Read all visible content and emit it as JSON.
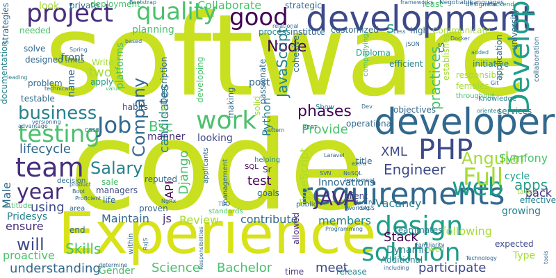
{
  "palette": {
    "yellow_green": "#c8e020",
    "lime": "#a5db36",
    "green": "#4ac16d",
    "teal": "#1f9e89",
    "teal_blue": "#26828e",
    "blue": "#31688e",
    "indigo": "#3e4989",
    "purple": "#472d7b",
    "dark_purple": "#440154"
  },
  "words": [
    {
      "text": "software",
      "color": "#c8e020"
    },
    {
      "text": "code",
      "color": "#c8e020"
    },
    {
      "text": "Experience",
      "color": "#d8e219"
    },
    {
      "text": "developer",
      "color": "#31688e"
    },
    {
      "text": "development",
      "color": "#3e4989"
    },
    {
      "text": "requirements",
      "color": "#31688e"
    },
    {
      "text": "project",
      "color": "#472d7b"
    },
    {
      "text": "quality",
      "color": "#4ac16d"
    },
    {
      "text": "good",
      "color": "#440154"
    },
    {
      "text": "design",
      "color": "#1f9e89"
    },
    {
      "text": "Develop",
      "color": "#1f9e89"
    },
    {
      "text": "PHP",
      "color": "#3e4989"
    },
    {
      "text": "web",
      "color": "#1f9e89"
    },
    {
      "text": "testing",
      "color": "#4ac16d"
    },
    {
      "text": "team",
      "color": "#472d7b"
    },
    {
      "text": "business",
      "color": "#26828e"
    },
    {
      "text": "Job",
      "color": "#31688e"
    },
    {
      "text": "work",
      "color": "#4ac16d"
    },
    {
      "text": "year",
      "color": "#472d7b"
    },
    {
      "text": "solution",
      "color": "#1f9e89"
    },
    {
      "text": "Full",
      "color": "#a5db36"
    },
    {
      "text": "JAVA",
      "color": "#472d7b"
    },
    {
      "text": "will",
      "color": "#3e4989"
    },
    {
      "text": "Salary",
      "color": "#26828e"
    },
    {
      "text": "Angular",
      "color": "#a5db36"
    },
    {
      "text": "phases",
      "color": "#440154"
    },
    {
      "text": "Engineer",
      "color": "#3e4989"
    },
    {
      "text": "Stack",
      "color": "#440154"
    },
    {
      "text": "apps",
      "color": "#1f9e89"
    },
    {
      "text": "Node",
      "color": "#440154"
    },
    {
      "text": "Collaborate",
      "color": "#4ac16d"
    },
    {
      "text": "Company",
      "color": "#31688e"
    },
    {
      "text": "candidates",
      "color": "#26828e"
    },
    {
      "text": "Bsc",
      "color": "#4ac16d"
    },
    {
      "text": "lifecycle",
      "color": "#31688e"
    },
    {
      "text": "Skills",
      "color": "#4ac16d"
    },
    {
      "text": "Bachelor",
      "color": "#4ac16d"
    },
    {
      "text": "Science",
      "color": "#4ac16d"
    },
    {
      "text": "understanding",
      "color": "#31688e"
    },
    {
      "text": "participate",
      "color": "#3e4989"
    },
    {
      "text": "meet",
      "color": "#3e4989"
    },
    {
      "text": "release",
      "color": "#26828e"
    },
    {
      "text": "Maintain",
      "color": "#31688e"
    },
    {
      "text": "js",
      "color": "#472d7b"
    },
    {
      "text": "Review",
      "color": "#a5db36"
    },
    {
      "text": "contribute",
      "color": "#31688e"
    },
    {
      "text": "members",
      "color": "#26828e"
    },
    {
      "text": "following",
      "color": "#a5db36"
    },
    {
      "text": "Python",
      "color": "#26828e"
    },
    {
      "text": "Provide",
      "color": "#4ac16d"
    },
    {
      "text": "JavaScript",
      "color": "#26828e"
    },
    {
      "text": "TypeScript",
      "color": "#a5db36"
    },
    {
      "text": "XML",
      "color": "#3e4989"
    },
    {
      "text": "Django",
      "color": "#4ac16d"
    },
    {
      "text": "API",
      "color": "#440154"
    },
    {
      "text": "test",
      "color": "#440154"
    },
    {
      "text": "Innovations",
      "color": "#31688e"
    },
    {
      "text": "Vacancy",
      "color": "#26828e"
    },
    {
      "text": "Symfony",
      "color": "#4ac16d"
    },
    {
      "text": "back",
      "color": "#472d7b"
    },
    {
      "text": "cycle",
      "color": "#1f9e89"
    },
    {
      "text": "ensure",
      "color": "#472d7b"
    },
    {
      "text": "using",
      "color": "#3e4989"
    },
    {
      "text": "Male",
      "color": "#31688e"
    },
    {
      "text": "Pridesys",
      "color": "#26828e"
    },
    {
      "text": "proactive",
      "color": "#4ac16d"
    },
    {
      "text": "Gender",
      "color": "#4ac16d"
    },
    {
      "text": "two",
      "color": "#a5db36"
    },
    {
      "text": "front",
      "color": "#31688e"
    },
    {
      "text": "planning",
      "color": "#4ac16d"
    },
    {
      "text": "Description",
      "color": "#31688e"
    },
    {
      "text": "developing",
      "color": "#4ac16d"
    },
    {
      "text": "post",
      "color": "#31688e"
    },
    {
      "text": "passionate",
      "color": "#31688e"
    },
    {
      "text": "practices",
      "color": "#4ac16d"
    },
    {
      "text": "objectives",
      "color": "#31688e"
    },
    {
      "text": "services",
      "color": "#26828e"
    },
    {
      "text": "responsible",
      "color": "#a5db36"
    },
    {
      "text": "application",
      "color": "#31688e"
    },
    {
      "text": "initiative",
      "color": "#26828e"
    },
    {
      "text": "cs",
      "color": "#31688e"
    },
    {
      "text": "process",
      "color": "#26828e"
    },
    {
      "text": "institute",
      "color": "#31688e"
    },
    {
      "text": "customized",
      "color": "#31688e"
    },
    {
      "text": "Communicate",
      "color": "#a5db36"
    },
    {
      "text": "efficient",
      "color": "#26828e"
    },
    {
      "text": "Diploma",
      "color": "#1f9e89"
    },
    {
      "text": "strategic",
      "color": "#31688e"
    },
    {
      "text": "deployment",
      "color": "#4ac16d"
    },
    {
      "text": "private",
      "color": "#31688e"
    },
    {
      "text": "look",
      "color": "#a5db36"
    },
    {
      "text": "strategies",
      "color": "#31688e"
    },
    {
      "text": "needed",
      "color": "#4ac16d"
    },
    {
      "text": "solve",
      "color": "#31688e"
    },
    {
      "text": "designed",
      "color": "#31688e"
    },
    {
      "text": "problem",
      "color": "#31688e"
    },
    {
      "text": "documentation",
      "color": "#26828e"
    },
    {
      "text": "testable",
      "color": "#31688e"
    },
    {
      "text": "habits",
      "color": "#3e4989"
    },
    {
      "text": "name",
      "color": "#31688e"
    },
    {
      "text": "apply",
      "color": "#1f9e89"
    },
    {
      "text": "Write",
      "color": "#a5db36"
    },
    {
      "text": "platforms",
      "color": "#4ac16d"
    },
    {
      "text": "making",
      "color": "#31688e"
    },
    {
      "text": "manner",
      "color": "#472d7b"
    },
    {
      "text": "looking",
      "color": "#3e4989"
    },
    {
      "text": "solid",
      "color": "#a5db36"
    },
    {
      "text": "operational",
      "color": "#31688e"
    },
    {
      "text": "time",
      "color": "#472d7b"
    },
    {
      "text": "allowed",
      "color": "#472d7b"
    },
    {
      "text": "Additional",
      "color": "#26828e"
    },
    {
      "text": "Dynamic",
      "color": "#26828e"
    },
    {
      "text": "expected",
      "color": "#3e4989"
    },
    {
      "text": "Type",
      "color": "#a5db36"
    },
    {
      "text": "growing",
      "color": "#26828e"
    },
    {
      "text": "effective",
      "color": "#26828e"
    },
    {
      "text": "title",
      "color": "#31688e"
    },
    {
      "text": "client",
      "color": "#3e4989"
    },
    {
      "text": "goals",
      "color": "#31688e"
    },
    {
      "text": "Sr",
      "color": "#472d7b"
    },
    {
      "text": "SQL",
      "color": "#440154"
    },
    {
      "text": "helping",
      "color": "#26828e"
    },
    {
      "text": "standards",
      "color": "#4ac16d"
    },
    {
      "text": "public",
      "color": "#31688e"
    },
    {
      "text": "sale",
      "color": "#4ac16d"
    },
    {
      "text": "managers",
      "color": "#3e4989"
    },
    {
      "text": "life",
      "color": "#31688e"
    },
    {
      "text": "reputed",
      "color": "#31688e"
    },
    {
      "text": "proven",
      "color": "#31688e"
    },
    {
      "text": "end",
      "color": "#31688e"
    },
    {
      "text": "area",
      "color": "#31688e"
    },
    {
      "text": "management",
      "color": "#31688e"
    },
    {
      "text": "applicants",
      "color": "#31688e"
    },
    {
      "text": "decision",
      "color": "#31688e"
    },
    {
      "text": "attitude",
      "color": "#4ac16d"
    },
    {
      "text": "within",
      "color": "#31688e"
    },
    {
      "text": "well",
      "color": "#a5db36"
    },
    {
      "text": "teammates",
      "color": "#26828e"
    },
    {
      "text": "take",
      "color": "#a5db36"
    },
    {
      "text": "CSE",
      "color": "#a5db36"
    },
    {
      "text": "cohesive",
      "color": "#31688e"
    },
    {
      "text": "Show",
      "color": "#26828e"
    },
    {
      "text": "establishes",
      "color": "#a5db36"
    },
    {
      "text": "companying",
      "color": "#4ac16d"
    },
    {
      "text": "high",
      "color": "#31688e"
    },
    {
      "text": "university",
      "color": "#31688e"
    },
    {
      "text": "collaboration",
      "color": "#31688e"
    },
    {
      "text": "females",
      "color": "#a5db36"
    },
    {
      "text": "Knowledge",
      "color": "#26828e"
    },
    {
      "text": "throughout",
      "color": "#4ac16d"
    },
    {
      "text": "least",
      "color": "#4ac16d"
    },
    {
      "text": "Languages",
      "color": "#31688e"
    },
    {
      "text": "Negotiable",
      "color": "#31688e"
    },
    {
      "text": "backend",
      "color": "#26828e"
    },
    {
      "text": "designers",
      "color": "#31688e"
    },
    {
      "text": "frameworks",
      "color": "#31688e"
    },
    {
      "text": "Bootstrap",
      "color": "#31688e"
    },
    {
      "text": "Spring",
      "color": "#31688e"
    },
    {
      "text": "HTML5",
      "color": "#31688e"
    },
    {
      "text": "based",
      "color": "#31688e"
    },
    {
      "text": "relational",
      "color": "#31688e"
    },
    {
      "text": "Docker",
      "color": "#31688e"
    },
    {
      "text": "Less",
      "color": "#31688e"
    },
    {
      "text": "JSON",
      "color": "#31688e"
    },
    {
      "text": "added",
      "color": "#26828e"
    },
    {
      "text": "Git",
      "color": "#31688e"
    },
    {
      "text": "oriented",
      "color": "#26828e"
    },
    {
      "text": "REST",
      "color": "#31688e"
    },
    {
      "text": "CSS3",
      "color": "#31688e"
    },
    {
      "text": "advantage",
      "color": "#31688e"
    },
    {
      "text": "technical",
      "color": "#31688e"
    },
    {
      "text": "leading",
      "color": "#26828e"
    },
    {
      "text": "versioning",
      "color": "#31688e"
    },
    {
      "text": "value",
      "color": "#4ac16d"
    },
    {
      "text": "pattern",
      "color": "#31688e"
    },
    {
      "text": "Laravel",
      "color": "#31688e"
    },
    {
      "text": "extra",
      "color": "#31688e"
    },
    {
      "text": "SVN",
      "color": "#31688e"
    },
    {
      "text": "NoSQL",
      "color": "#31688e"
    },
    {
      "text": "Implement",
      "color": "#31688e"
    },
    {
      "text": "identify",
      "color": "#31688e"
    },
    {
      "text": "SASS",
      "color": "#31688e"
    },
    {
      "text": "working",
      "color": "#31688e"
    },
    {
      "text": "Programming",
      "color": "#31688e"
    },
    {
      "text": "Familiarity",
      "color": "#31688e"
    },
    {
      "text": "including",
      "color": "#31688e"
    },
    {
      "text": "Technology",
      "color": "#31688e"
    },
    {
      "text": "tools",
      "color": "#31688e"
    },
    {
      "text": "Responsibilities",
      "color": "#31688e"
    },
    {
      "text": "determine",
      "color": "#31688e"
    },
    {
      "text": "RxJS",
      "color": "#31688e"
    },
    {
      "text": "NgRx",
      "color": "#31688e"
    },
    {
      "text": "TDD",
      "color": "#31688e"
    },
    {
      "text": "Proficient",
      "color": "#31688e"
    },
    {
      "text": "product",
      "color": "#31688e"
    },
    {
      "text": "Boot",
      "color": "#31688e"
    },
    {
      "text": "s",
      "color": "#1f9e89"
    },
    {
      "text": "Dev",
      "color": "#31688e"
    }
  ]
}
